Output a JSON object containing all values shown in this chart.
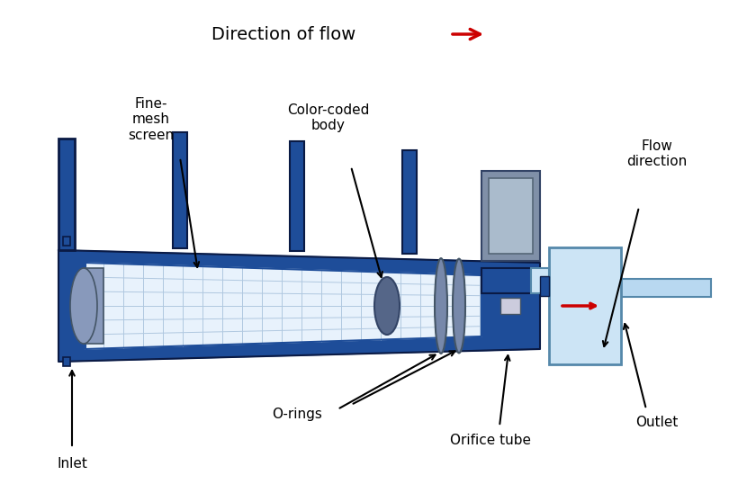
{
  "bg_color": "#ffffff",
  "dark_blue": "#1e4d99",
  "med_blue": "#2a5faa",
  "light_blue_mesh": "#e8f2fc",
  "mesh_line": "#b0c8e0",
  "light_cyan": "#b8d8f0",
  "lighter_cyan": "#cce4f5",
  "gray_ring": "#7788aa",
  "dark_gray": "#556677",
  "cap_color": "#8899bb",
  "orifice_gray": "#8090a8",
  "orifice_light": "#aabbcc",
  "red": "#cc0000",
  "title": "Direction of flow",
  "labels": {
    "fine_mesh": "Fine-\nmesh\nscreen",
    "color_coded": "Color-coded\nbody",
    "flow_direction": "Flow\ndirection",
    "o_rings": "O-rings",
    "inlet": "Inlet",
    "orifice_tube": "Orifice tube",
    "outlet": "Outlet"
  }
}
